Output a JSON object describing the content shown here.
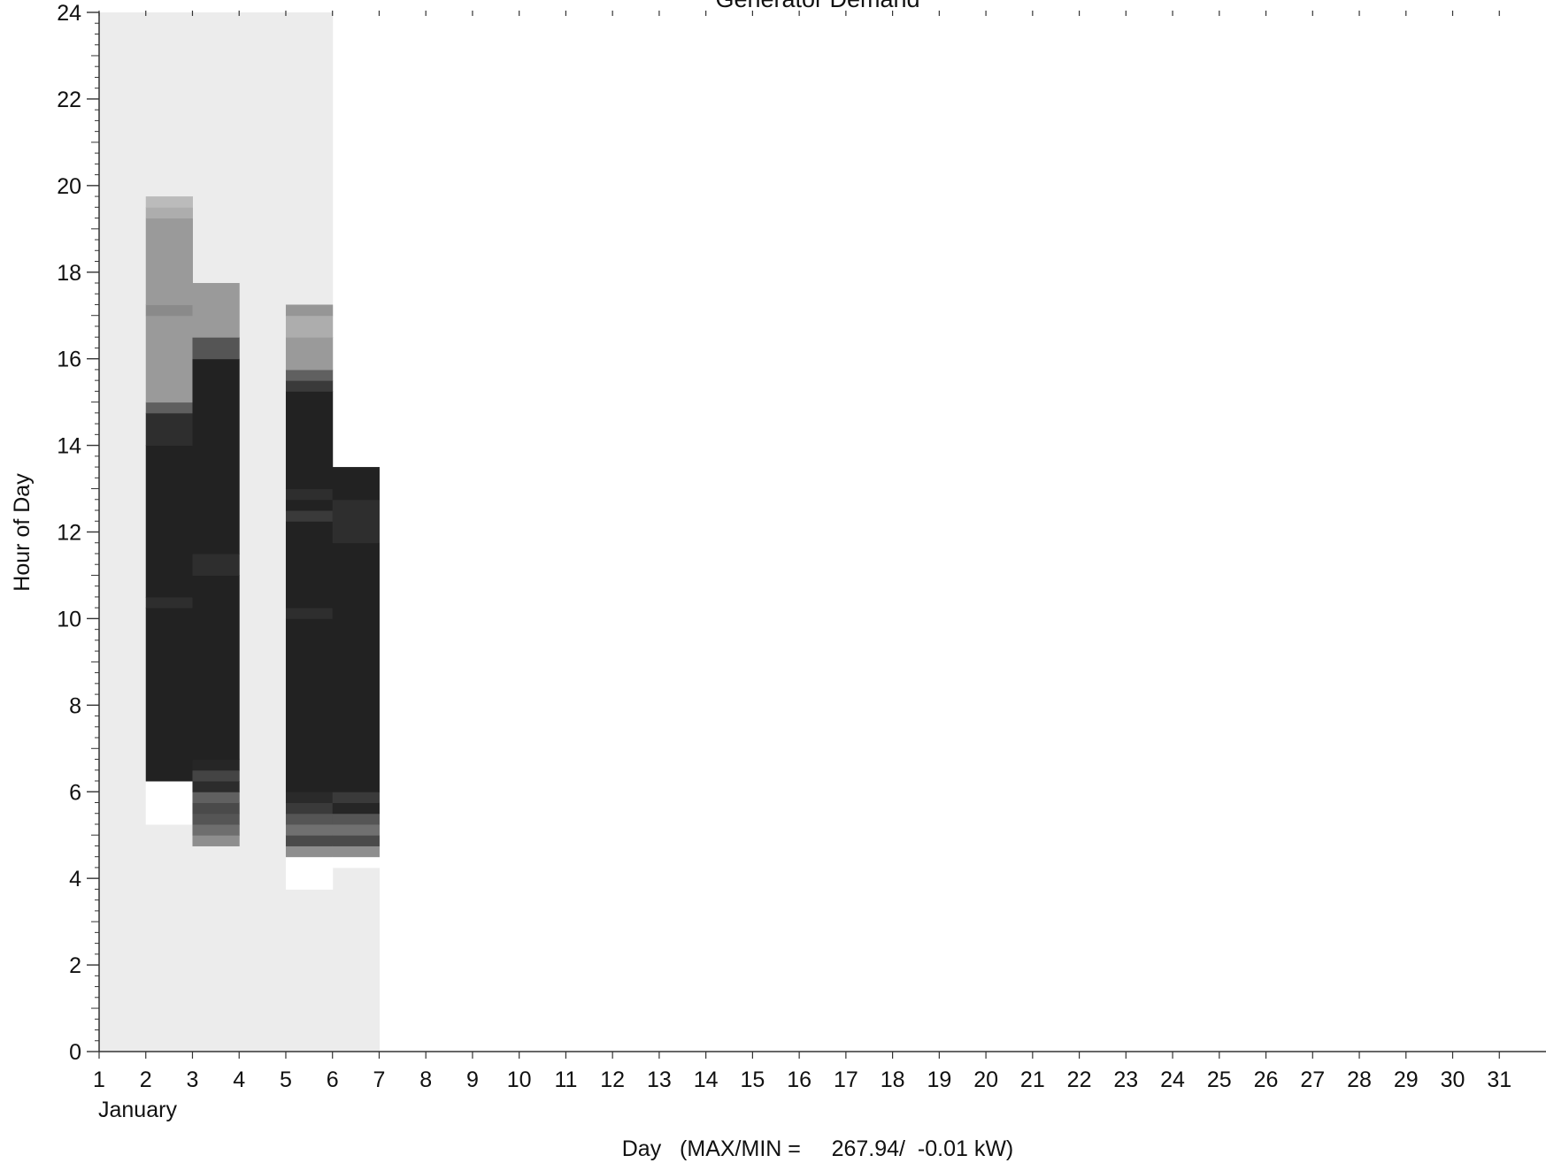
{
  "chart_data": {
    "type": "heatmap",
    "title": "Generator Demand",
    "xlabel": "Day   (MAX/MIN =     267.94/  -0.01 kW)",
    "ylabel": "Hour of Day",
    "month_label": "January",
    "xlim": [
      1,
      32
    ],
    "ylim": [
      0,
      24
    ],
    "x_ticks": [
      1,
      2,
      3,
      4,
      5,
      6,
      7,
      8,
      9,
      10,
      11,
      12,
      13,
      14,
      15,
      16,
      17,
      18,
      19,
      20,
      21,
      22,
      23,
      24,
      25,
      26,
      27,
      28,
      29,
      30,
      31
    ],
    "y_ticks": [
      0,
      2,
      4,
      6,
      8,
      10,
      12,
      14,
      16,
      18,
      20,
      22,
      24
    ],
    "background_cells": [
      {
        "day": 1,
        "hour_start": 0,
        "hour_end": 24,
        "color": "#ececec"
      },
      {
        "day": 2,
        "hour_start": 0,
        "hour_end": 24,
        "color": "#ececec"
      },
      {
        "day": 3,
        "hour_start": 0,
        "hour_end": 24,
        "color": "#ececec"
      },
      {
        "day": 4,
        "hour_start": 0,
        "hour_end": 24,
        "color": "#ececec"
      },
      {
        "day": 5,
        "hour_start": 0,
        "hour_end": 24,
        "color": "#ececec"
      },
      {
        "day": 6,
        "hour_start": 0,
        "hour_end": 4.25,
        "color": "#ececec"
      }
    ],
    "cells": [
      {
        "day": 2,
        "hour_start": 5.25,
        "hour_end": 6.25,
        "color": "#ffffff"
      },
      {
        "day": 2,
        "hour_start": 6.25,
        "hour_end": 10.25,
        "color": "#222222"
      },
      {
        "day": 2,
        "hour_start": 10.25,
        "hour_end": 10.5,
        "color": "#2e2e2e"
      },
      {
        "day": 2,
        "hour_start": 10.5,
        "hour_end": 14.0,
        "color": "#222222"
      },
      {
        "day": 2,
        "hour_start": 14.0,
        "hour_end": 14.75,
        "color": "#2e2e2e"
      },
      {
        "day": 2,
        "hour_start": 14.75,
        "hour_end": 15.0,
        "color": "#5f5f5f"
      },
      {
        "day": 2,
        "hour_start": 15.0,
        "hour_end": 17.0,
        "color": "#9a9a9a"
      },
      {
        "day": 2,
        "hour_start": 17.0,
        "hour_end": 17.25,
        "color": "#8a8a8a"
      },
      {
        "day": 2,
        "hour_start": 17.25,
        "hour_end": 19.25,
        "color": "#9a9a9a"
      },
      {
        "day": 2,
        "hour_start": 19.25,
        "hour_end": 19.5,
        "color": "#adadad"
      },
      {
        "day": 2,
        "hour_start": 19.5,
        "hour_end": 19.75,
        "color": "#bbbbbb"
      },
      {
        "day": 3,
        "hour_start": 4.75,
        "hour_end": 5.0,
        "color": "#8e8e8e"
      },
      {
        "day": 3,
        "hour_start": 5.0,
        "hour_end": 5.25,
        "color": "#6e6e6e"
      },
      {
        "day": 3,
        "hour_start": 5.25,
        "hour_end": 5.5,
        "color": "#555555"
      },
      {
        "day": 3,
        "hour_start": 5.5,
        "hour_end": 5.75,
        "color": "#4a4a4a"
      },
      {
        "day": 3,
        "hour_start": 5.75,
        "hour_end": 6.0,
        "color": "#606060"
      },
      {
        "day": 3,
        "hour_start": 6.0,
        "hour_end": 6.25,
        "color": "#2c2c2c"
      },
      {
        "day": 3,
        "hour_start": 6.25,
        "hour_end": 6.5,
        "color": "#444444"
      },
      {
        "day": 3,
        "hour_start": 6.5,
        "hour_end": 6.75,
        "color": "#262626"
      },
      {
        "day": 3,
        "hour_start": 6.75,
        "hour_end": 11.0,
        "color": "#222222"
      },
      {
        "day": 3,
        "hour_start": 11.0,
        "hour_end": 11.5,
        "color": "#2e2e2e"
      },
      {
        "day": 3,
        "hour_start": 11.5,
        "hour_end": 16.0,
        "color": "#222222"
      },
      {
        "day": 3,
        "hour_start": 16.0,
        "hour_end": 16.5,
        "color": "#555555"
      },
      {
        "day": 3,
        "hour_start": 16.5,
        "hour_end": 17.75,
        "color": "#9a9a9a"
      },
      {
        "day": 5,
        "hour_start": 3.75,
        "hour_end": 4.5,
        "color": "#ffffff"
      },
      {
        "day": 5,
        "hour_start": 4.5,
        "hour_end": 4.75,
        "color": "#8e8e8e"
      },
      {
        "day": 5,
        "hour_start": 4.75,
        "hour_end": 5.0,
        "color": "#4a4a4a"
      },
      {
        "day": 5,
        "hour_start": 5.0,
        "hour_end": 5.25,
        "color": "#707070"
      },
      {
        "day": 5,
        "hour_start": 5.25,
        "hour_end": 5.5,
        "color": "#555555"
      },
      {
        "day": 5,
        "hour_start": 5.5,
        "hour_end": 5.75,
        "color": "#3a3a3a"
      },
      {
        "day": 5,
        "hour_start": 5.75,
        "hour_end": 6.0,
        "color": "#2a2a2a"
      },
      {
        "day": 5,
        "hour_start": 6.0,
        "hour_end": 10.0,
        "color": "#222222"
      },
      {
        "day": 5,
        "hour_start": 10.0,
        "hour_end": 10.25,
        "color": "#2e2e2e"
      },
      {
        "day": 5,
        "hour_start": 10.25,
        "hour_end": 12.25,
        "color": "#222222"
      },
      {
        "day": 5,
        "hour_start": 12.25,
        "hour_end": 12.5,
        "color": "#3a3a3a"
      },
      {
        "day": 5,
        "hour_start": 12.5,
        "hour_end": 12.75,
        "color": "#222222"
      },
      {
        "day": 5,
        "hour_start": 12.75,
        "hour_end": 13.0,
        "color": "#2e2e2e"
      },
      {
        "day": 5,
        "hour_start": 13.0,
        "hour_end": 15.25,
        "color": "#222222"
      },
      {
        "day": 5,
        "hour_start": 15.25,
        "hour_end": 15.5,
        "color": "#3a3a3a"
      },
      {
        "day": 5,
        "hour_start": 15.5,
        "hour_end": 15.75,
        "color": "#606060"
      },
      {
        "day": 5,
        "hour_start": 15.75,
        "hour_end": 16.5,
        "color": "#9a9a9a"
      },
      {
        "day": 5,
        "hour_start": 16.5,
        "hour_end": 17.0,
        "color": "#adadad"
      },
      {
        "day": 5,
        "hour_start": 17.0,
        "hour_end": 17.25,
        "color": "#969696"
      },
      {
        "day": 6,
        "hour_start": 4.25,
        "hour_end": 4.5,
        "color": "#ffffff"
      },
      {
        "day": 6,
        "hour_start": 4.5,
        "hour_end": 4.75,
        "color": "#8e8e8e"
      },
      {
        "day": 6,
        "hour_start": 4.75,
        "hour_end": 5.0,
        "color": "#4a4a4a"
      },
      {
        "day": 6,
        "hour_start": 5.0,
        "hour_end": 5.25,
        "color": "#707070"
      },
      {
        "day": 6,
        "hour_start": 5.25,
        "hour_end": 5.5,
        "color": "#555555"
      },
      {
        "day": 6,
        "hour_start": 5.5,
        "hour_end": 5.75,
        "color": "#262626"
      },
      {
        "day": 6,
        "hour_start": 5.75,
        "hour_end": 6.0,
        "color": "#3a3a3a"
      },
      {
        "day": 6,
        "hour_start": 6.0,
        "hour_end": 11.75,
        "color": "#222222"
      },
      {
        "day": 6,
        "hour_start": 11.75,
        "hour_end": 12.75,
        "color": "#2e2e2e"
      },
      {
        "day": 6,
        "hour_start": 12.75,
        "hour_end": 13.5,
        "color": "#222222"
      }
    ],
    "grid": false,
    "colors": {
      "axis": "#333333",
      "text": "#111111",
      "no_data": "#ececec",
      "background": "#ffffff"
    }
  }
}
